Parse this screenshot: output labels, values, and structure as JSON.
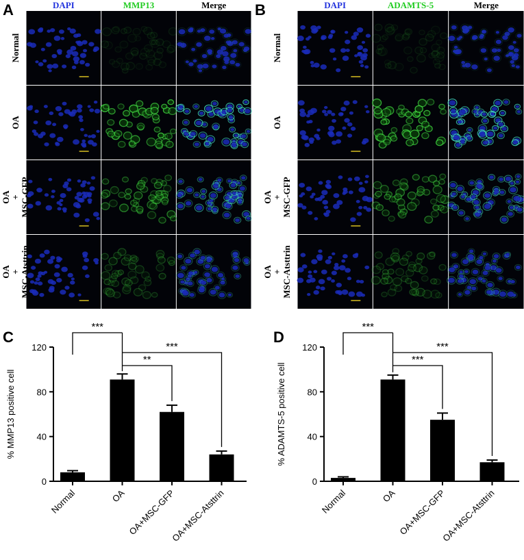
{
  "panels": [
    {
      "label": "A",
      "columns": [
        "DAPI",
        "MMP13",
        "Merge"
      ],
      "rows": [
        [
          "Normal"
        ],
        [
          "OA"
        ],
        [
          "OA",
          "+",
          "MSC-GFP"
        ],
        [
          "OA",
          "+",
          "MSC-Atsttrin"
        ]
      ]
    },
    {
      "label": "B",
      "columns": [
        "DAPI",
        "ADAMTS-5",
        "Merge"
      ],
      "rows": [
        [
          "Normal"
        ],
        [
          "OA"
        ],
        [
          "OA",
          "+",
          "MSC-GFP"
        ],
        [
          "OA",
          "+",
          "MSC-Atsttrin"
        ]
      ]
    }
  ],
  "chart_data": [
    {
      "type": "bar",
      "label": "C",
      "ylabel": "% MMP13 positive cell",
      "categories": [
        "Normal",
        "OA",
        "OA+MSC-GFP",
        "OA+MSC-Atsttrin"
      ],
      "values": [
        8,
        91,
        62,
        24
      ],
      "errors": [
        1.5,
        5,
        6,
        3
      ],
      "color": "#000000",
      "ylim": [
        0,
        120
      ],
      "yticks": [
        0,
        40,
        80,
        120
      ],
      "comparisons": [
        {
          "text": "***",
          "between": [
            "Normal",
            "OA"
          ]
        },
        {
          "text": "**",
          "between": [
            "OA",
            "OA+MSC-GFP"
          ]
        },
        {
          "text": "***",
          "between": [
            "OA",
            "OA+MSC-Atsttrin"
          ]
        }
      ]
    },
    {
      "type": "bar",
      "label": "D",
      "ylabel": "% ADAMTS-5 positive cell",
      "categories": [
        "Normal",
        "OA",
        "OA+MSC-GFP",
        "OA+MSC-Atsttrin"
      ],
      "values": [
        3,
        91,
        55,
        17
      ],
      "errors": [
        1,
        4,
        6,
        2
      ],
      "color": "#000000",
      "ylim": [
        0,
        120
      ],
      "yticks": [
        0,
        40,
        80,
        120
      ],
      "comparisons": [
        {
          "text": "***",
          "between": [
            "Normal",
            "OA"
          ]
        },
        {
          "text": "***",
          "between": [
            "OA",
            "OA+MSC-GFP"
          ]
        },
        {
          "text": "***",
          "between": [
            "OA",
            "OA+MSC-Atsttrin"
          ]
        }
      ]
    }
  ]
}
